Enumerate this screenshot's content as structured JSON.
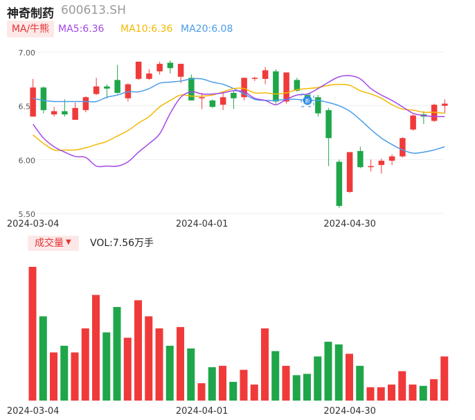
{
  "header": {
    "name": "神奇制药",
    "code": "600613.SH"
  },
  "ma": {
    "toggle_label": "MA/牛熊",
    "ma5": "MA5:6.36",
    "ma10": "MA10:6.36",
    "ma20": "MA20:6.08"
  },
  "volume": {
    "toggle_label": "成交量",
    "caret": "▼",
    "text": "VOL:7.56万手"
  },
  "colors": {
    "up": "#f03a3a",
    "down": "#1fa64a",
    "ma5": "#a347e6",
    "ma10": "#f4b800",
    "ma20": "#4a9de8",
    "grid": "#eeeeee"
  },
  "marker": {
    "label": "新"
  },
  "chart_data": {
    "type": "candlestick",
    "x_tick_labels": [
      {
        "index": 0,
        "label": "2024-03-04"
      },
      {
        "index": 16,
        "label": "2024-04-01"
      },
      {
        "index": 30,
        "label": "2024-04-30"
      }
    ],
    "price_axis": {
      "ylim": [
        5.5,
        7.0
      ],
      "ticks": [
        "7.00",
        "6.50",
        "6.00",
        "5.50"
      ]
    },
    "candles": [
      {
        "open": 6.4,
        "close": 6.67,
        "high": 6.75,
        "low": 6.4
      },
      {
        "open": 6.67,
        "close": 6.46,
        "high": 6.68,
        "low": 6.43
      },
      {
        "open": 6.42,
        "close": 6.45,
        "high": 6.49,
        "low": 6.4
      },
      {
        "open": 6.45,
        "close": 6.42,
        "high": 6.56,
        "low": 6.4
      },
      {
        "open": 6.37,
        "close": 6.48,
        "high": 6.53,
        "low": 6.37
      },
      {
        "open": 6.46,
        "close": 6.58,
        "high": 6.59,
        "low": 6.44
      },
      {
        "open": 6.61,
        "close": 6.68,
        "high": 6.76,
        "low": 6.6
      },
      {
        "open": 6.68,
        "close": 6.66,
        "high": 6.7,
        "low": 6.57
      },
      {
        "open": 6.74,
        "close": 6.62,
        "high": 6.88,
        "low": 6.61
      },
      {
        "open": 6.57,
        "close": 6.7,
        "high": 6.71,
        "low": 6.54
      },
      {
        "open": 6.75,
        "close": 6.91,
        "high": 6.91,
        "low": 6.74
      },
      {
        "open": 6.75,
        "close": 6.8,
        "high": 6.84,
        "low": 6.74
      },
      {
        "open": 6.82,
        "close": 6.89,
        "high": 6.91,
        "low": 6.79
      },
      {
        "open": 6.9,
        "close": 6.85,
        "high": 6.92,
        "low": 6.8
      },
      {
        "open": 6.77,
        "close": 6.89,
        "high": 6.89,
        "low": 6.71
      },
      {
        "open": 6.76,
        "close": 6.55,
        "high": 6.79,
        "low": 6.55
      },
      {
        "open": 6.57,
        "close": 6.58,
        "high": 6.62,
        "low": 6.47
      },
      {
        "open": 6.55,
        "close": 6.49,
        "high": 6.56,
        "low": 6.48
      },
      {
        "open": 6.51,
        "close": 6.58,
        "high": 6.63,
        "low": 6.46
      },
      {
        "open": 6.62,
        "close": 6.57,
        "high": 6.64,
        "low": 6.47
      },
      {
        "open": 6.58,
        "close": 6.76,
        "high": 6.76,
        "low": 6.55
      },
      {
        "open": 6.75,
        "close": 6.76,
        "high": 6.77,
        "low": 6.73
      },
      {
        "open": 6.75,
        "close": 6.83,
        "high": 6.86,
        "low": 6.7
      },
      {
        "open": 6.82,
        "close": 6.54,
        "high": 6.84,
        "low": 6.52
      },
      {
        "open": 6.54,
        "close": 6.81,
        "high": 6.81,
        "low": 6.52
      },
      {
        "open": 6.74,
        "close": 6.64,
        "high": 6.76,
        "low": 6.63
      },
      {
        "open": 6.6,
        "close": 6.55,
        "high": 6.61,
        "low": 6.51
      },
      {
        "open": 6.58,
        "close": 6.43,
        "high": 6.6,
        "low": 6.4
      },
      {
        "open": 6.46,
        "close": 6.2,
        "high": 6.48,
        "low": 5.94
      },
      {
        "open": 5.98,
        "close": 5.57,
        "high": 6.0,
        "low": 5.55
      },
      {
        "open": 5.7,
        "close": 6.07,
        "high": 6.07,
        "low": 5.69
      },
      {
        "open": 6.08,
        "close": 5.93,
        "high": 6.12,
        "low": 5.92
      },
      {
        "open": 5.93,
        "close": 5.94,
        "high": 6.0,
        "low": 5.89
      },
      {
        "open": 5.95,
        "close": 5.99,
        "high": 6.01,
        "low": 5.87
      },
      {
        "open": 5.99,
        "close": 6.03,
        "high": 6.05,
        "low": 5.95
      },
      {
        "open": 6.03,
        "close": 6.2,
        "high": 6.21,
        "low": 6.02
      },
      {
        "open": 6.28,
        "close": 6.41,
        "high": 6.42,
        "low": 6.27
      },
      {
        "open": 6.42,
        "close": 6.4,
        "high": 6.45,
        "low": 6.33
      },
      {
        "open": 6.36,
        "close": 6.51,
        "high": 6.52,
        "low": 6.35
      },
      {
        "open": 6.5,
        "close": 6.52,
        "high": 6.56,
        "low": 6.43
      }
    ],
    "ma5": [
      6.33,
      6.2,
      6.12,
      6.07,
      6.03,
      6.02,
      5.94,
      5.94,
      5.94,
      5.98,
      6.07,
      6.15,
      6.24,
      6.43,
      6.58,
      6.63,
      6.61,
      6.61,
      6.62,
      6.64,
      6.63,
      6.57,
      6.55,
      6.51,
      6.56,
      6.6,
      6.61,
      6.66,
      6.72,
      6.77,
      6.78,
      6.75,
      6.66,
      6.6,
      6.55,
      6.49,
      6.43,
      6.41,
      6.4,
      6.4
    ],
    "ma10": [
      6.23,
      6.15,
      6.09,
      6.09,
      6.09,
      6.11,
      6.14,
      6.17,
      6.22,
      6.27,
      6.34,
      6.4,
      6.49,
      6.55,
      6.6,
      6.59,
      6.59,
      6.6,
      6.63,
      6.66,
      6.66,
      6.62,
      6.62,
      6.61,
      6.62,
      6.65,
      6.66,
      6.67,
      6.69,
      6.7,
      6.69,
      6.64,
      6.61,
      6.57,
      6.51,
      6.47,
      6.46,
      6.44,
      6.44,
      6.43
    ],
    "ma20": [
      6.57,
      6.55,
      6.54,
      6.54,
      6.54,
      6.54,
      6.54,
      6.58,
      6.6,
      6.63,
      6.63,
      6.66,
      6.71,
      6.72,
      6.73,
      6.75,
      6.75,
      6.72,
      6.7,
      6.66,
      6.61,
      6.56,
      6.55,
      6.55,
      6.56,
      6.56,
      6.55,
      6.55,
      6.53,
      6.5,
      6.45,
      6.37,
      6.28,
      6.2,
      6.14,
      6.09,
      6.06,
      6.07,
      6.09,
      6.12
    ],
    "volumes": [
      100,
      63,
      36,
      41,
      36,
      54,
      79,
      51,
      70,
      47,
      75,
      63,
      54,
      41,
      55,
      39,
      13,
      25,
      26,
      14,
      23,
      12,
      54,
      37,
      26,
      19,
      20,
      33,
      44,
      42,
      35,
      26,
      10,
      10,
      12,
      22,
      12,
      11,
      16,
      33
    ],
    "new_marker_index": 26
  }
}
